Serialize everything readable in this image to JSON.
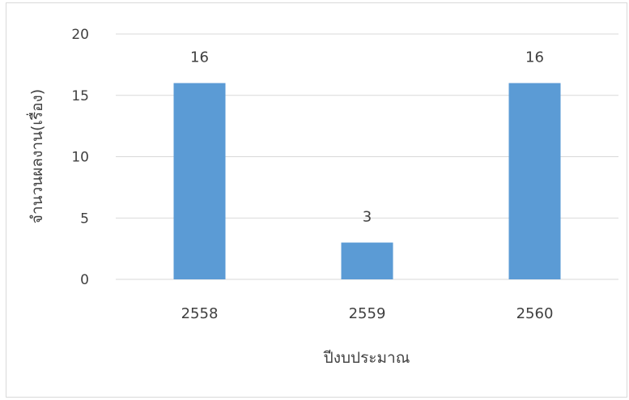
{
  "chart_data": {
    "type": "bar",
    "categories": [
      "2558",
      "2559",
      "2560"
    ],
    "values": [
      16,
      3,
      16
    ],
    "data_labels": [
      "16",
      "3",
      "16"
    ],
    "title": "",
    "xlabel": "ปีงบประมาณ",
    "ylabel": "จำนวนผลงาน(เรื่อง)",
    "ylim": [
      0,
      20
    ],
    "yticks": [
      "0",
      "5",
      "10",
      "15",
      "20"
    ],
    "grid": true,
    "legend": "none",
    "bar_color": "#5B9BD5",
    "grid_color": "#d9d9d9",
    "text_color": "#404040"
  }
}
